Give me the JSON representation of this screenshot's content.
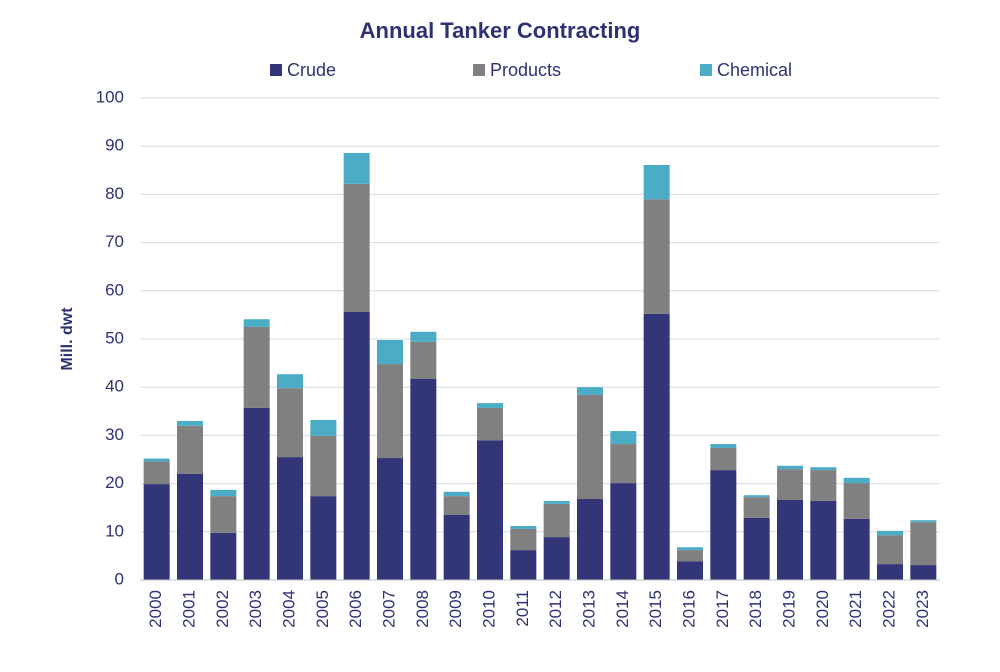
{
  "chart_data": {
    "type": "stacked_bar",
    "title": "Annual Tanker Contracting",
    "y_label": "Mill. dwt",
    "categories": [
      "2000",
      "2001",
      "2002",
      "2003",
      "2004",
      "2005",
      "2006",
      "2007",
      "2008",
      "2009",
      "2010",
      "2011",
      "2012",
      "2013",
      "2014",
      "2015",
      "2016",
      "2017",
      "2018",
      "2019",
      "2020",
      "2021",
      "2022",
      "2023"
    ],
    "series": [
      {
        "name": "Crude",
        "color": "#333579",
        "values": [
          19.9,
          22,
          9.8,
          35.7,
          25.5,
          17.4,
          55.6,
          25.3,
          41.7,
          13.5,
          29,
          6.2,
          8.9,
          16.8,
          20.1,
          55.2,
          3.9,
          22.8,
          12.9,
          16.6,
          16.4,
          12.7,
          3.3,
          3.1
        ]
      },
      {
        "name": "Products",
        "color": "#808080",
        "values": [
          4.7,
          10,
          7.6,
          16.8,
          14.3,
          12.5,
          26.6,
          19.5,
          7.7,
          3.9,
          6.7,
          4.4,
          6.9,
          21.6,
          8.1,
          23.8,
          2.3,
          4.6,
          4.3,
          6.4,
          6.4,
          7.4,
          6,
          8.9
        ]
      },
      {
        "name": "Chemical",
        "color": "#4bacc6",
        "values": [
          0.6,
          1,
          1.3,
          1.6,
          2.9,
          3.3,
          6.4,
          5,
          2.1,
          0.9,
          1,
          0.6,
          0.6,
          1.6,
          2.7,
          7.1,
          0.6,
          0.8,
          0.4,
          0.7,
          0.6,
          1.1,
          0.9,
          0.4
        ]
      }
    ],
    "ylim": [
      0,
      100
    ],
    "yticks": [
      0,
      10,
      20,
      30,
      40,
      50,
      60,
      70,
      80,
      90,
      100
    ],
    "grid": true
  }
}
